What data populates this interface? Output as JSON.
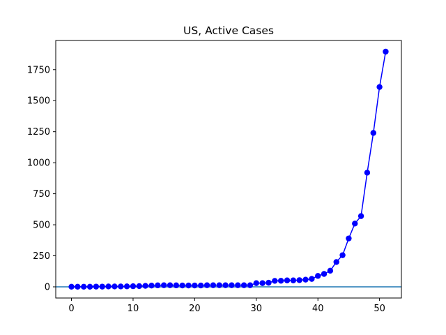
{
  "chart_data": {
    "type": "line",
    "title": "US, Active Cases",
    "xlabel": "",
    "ylabel": "",
    "xlim": [
      -2.55,
      53.55
    ],
    "ylim": [
      -90,
      1985
    ],
    "xticks": [
      0,
      10,
      20,
      30,
      40,
      50
    ],
    "yticks": [
      0,
      250,
      500,
      750,
      1000,
      1250,
      1500,
      1750
    ],
    "grid": false,
    "reference_line": {
      "y": 0,
      "color": "#1f77b4"
    },
    "series": [
      {
        "color": "#0000ff",
        "marker": "circle",
        "x": [
          0,
          1,
          2,
          3,
          4,
          5,
          6,
          7,
          8,
          9,
          10,
          11,
          12,
          13,
          14,
          15,
          16,
          17,
          18,
          19,
          20,
          21,
          22,
          23,
          24,
          25,
          26,
          27,
          28,
          29,
          30,
          31,
          32,
          33,
          34,
          35,
          36,
          37,
          38,
          39,
          40,
          41,
          42,
          43,
          44,
          45,
          46,
          47,
          48,
          49,
          50,
          51
        ],
        "values": [
          1,
          1,
          1,
          1,
          2,
          2,
          3,
          3,
          3,
          4,
          5,
          6,
          8,
          10,
          12,
          13,
          13,
          12,
          11,
          11,
          11,
          11,
          13,
          13,
          13,
          13,
          13,
          13,
          13,
          13,
          30,
          30,
          33,
          48,
          49,
          52,
          52,
          54,
          58,
          64,
          88,
          104,
          130,
          200,
          255,
          390,
          510,
          570,
          920,
          1240,
          1610,
          1895
        ]
      }
    ]
  }
}
